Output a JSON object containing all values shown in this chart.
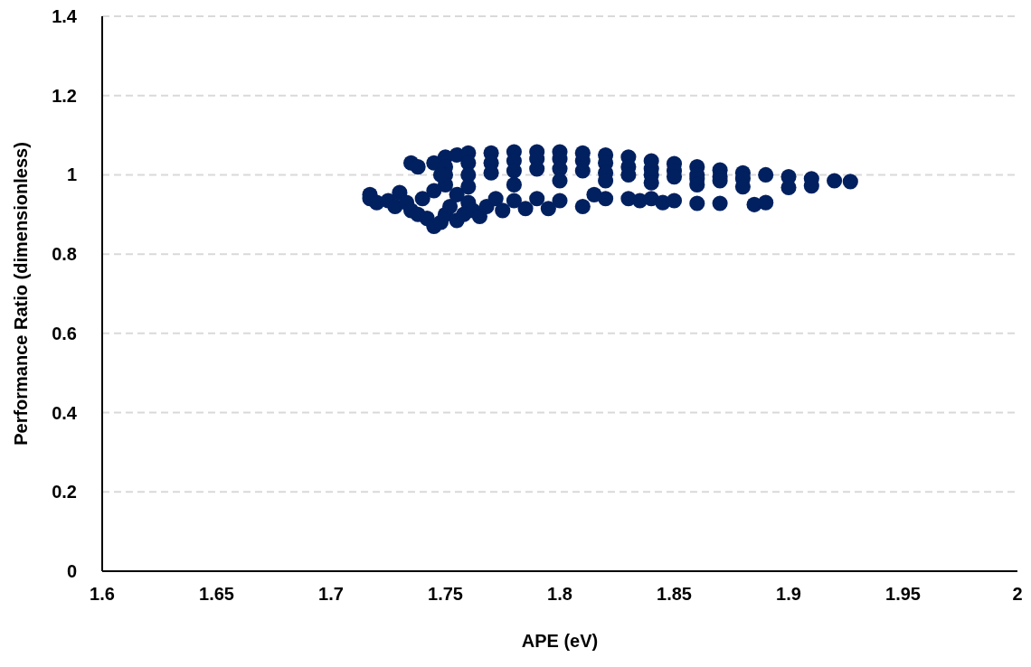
{
  "chart_data": {
    "type": "scatter",
    "xlabel": "APE (eV)",
    "ylabel": "Performance Ratio (dimensionless)",
    "xlim": [
      1.6,
      2
    ],
    "xticks": [
      1.6,
      1.65,
      1.7,
      1.75,
      1.8,
      1.85,
      1.9,
      1.95,
      2
    ],
    "ylim": [
      0,
      1.4
    ],
    "yticks": [
      0,
      0.2,
      0.4,
      0.6,
      0.8,
      1,
      1.2,
      1.4
    ],
    "grid": "y",
    "marker": "circle",
    "series": [
      {
        "color": "#002060",
        "x": [
          1.735,
          1.738,
          1.745,
          1.75,
          1.755,
          1.76,
          1.77,
          1.78,
          1.79,
          1.8,
          1.81,
          1.82,
          1.83,
          1.84,
          1.85,
          1.86,
          1.87,
          1.88,
          1.89,
          1.9,
          1.91,
          1.92,
          1.927,
          1.75,
          1.76,
          1.77,
          1.78,
          1.79,
          1.8,
          1.81,
          1.82,
          1.83,
          1.84,
          1.85,
          1.86,
          1.87,
          1.88,
          1.75,
          1.76,
          1.77,
          1.78,
          1.79,
          1.8,
          1.81,
          1.82,
          1.83,
          1.84,
          1.85,
          1.86,
          1.87,
          1.75,
          1.76,
          1.78,
          1.8,
          1.82,
          1.84,
          1.86,
          1.88,
          1.9,
          1.91,
          1.717,
          1.717,
          1.72,
          1.725,
          1.728,
          1.73,
          1.733,
          1.735,
          1.738,
          1.74,
          1.742,
          1.745,
          1.748,
          1.75,
          1.752,
          1.755,
          1.758,
          1.76,
          1.762,
          1.765,
          1.768,
          1.772,
          1.775,
          1.78,
          1.785,
          1.79,
          1.795,
          1.8,
          1.81,
          1.815,
          1.82,
          1.83,
          1.835,
          1.84,
          1.845,
          1.85,
          1.86,
          1.87,
          1.885,
          1.89,
          1.748,
          1.745,
          1.755
        ],
        "values": [
          1.03,
          1.02,
          1.03,
          1.045,
          1.05,
          1.055,
          1.055,
          1.058,
          1.058,
          1.058,
          1.055,
          1.05,
          1.045,
          1.035,
          1.028,
          1.02,
          1.012,
          1.005,
          1.0,
          0.995,
          0.99,
          0.985,
          0.983,
          1.02,
          1.03,
          1.03,
          1.035,
          1.04,
          1.04,
          1.035,
          1.03,
          1.02,
          1.015,
          1.01,
          1.0,
          0.995,
          0.99,
          1.0,
          1.0,
          1.005,
          1.01,
          1.015,
          1.015,
          1.01,
          1.005,
          1.0,
          1.0,
          0.995,
          0.99,
          0.985,
          0.975,
          0.97,
          0.975,
          0.985,
          0.985,
          0.98,
          0.975,
          0.97,
          0.968,
          0.972,
          0.95,
          0.94,
          0.93,
          0.935,
          0.92,
          0.955,
          0.93,
          0.91,
          0.9,
          0.94,
          0.89,
          0.87,
          0.88,
          0.9,
          0.92,
          0.885,
          0.9,
          0.93,
          0.91,
          0.895,
          0.92,
          0.94,
          0.91,
          0.935,
          0.915,
          0.94,
          0.915,
          0.935,
          0.92,
          0.95,
          0.94,
          0.94,
          0.935,
          0.94,
          0.93,
          0.935,
          0.928,
          0.928,
          0.925,
          0.93,
          1.0,
          0.96,
          0.95
        ]
      }
    ]
  }
}
